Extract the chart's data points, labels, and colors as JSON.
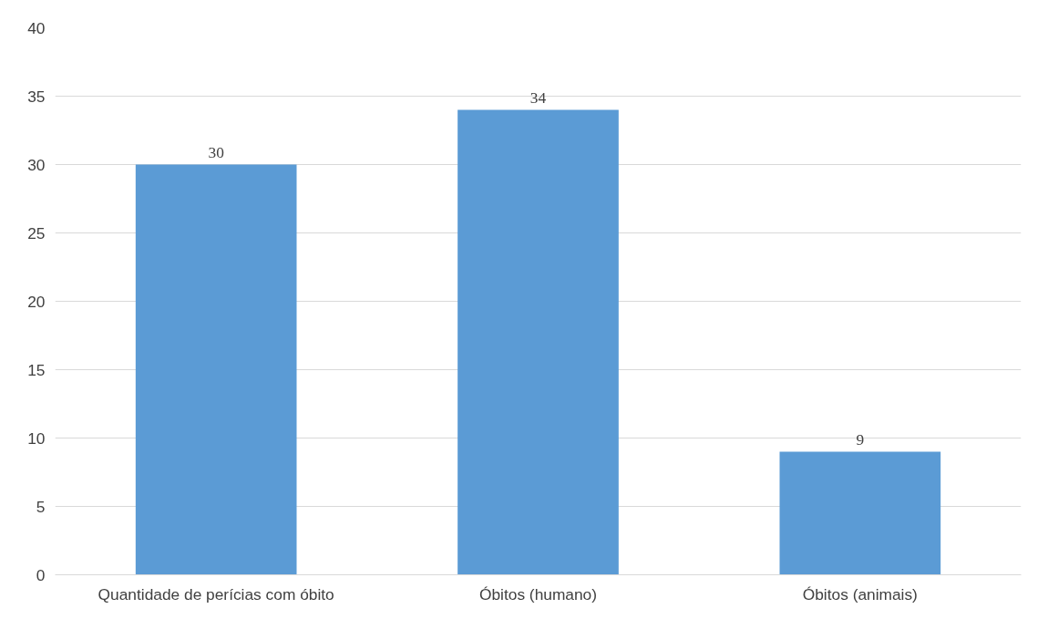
{
  "chart_data": {
    "type": "bar",
    "categories": [
      "Quantidade de perícias com óbito",
      "Óbitos (humano)",
      "Óbitos (animais)"
    ],
    "values": [
      30,
      34,
      9
    ],
    "color": "#5b9bd5",
    "ylim": [
      0,
      40
    ],
    "yticks": [
      0,
      5,
      10,
      15,
      20,
      25,
      30,
      35,
      40
    ],
    "grid": "y",
    "data_labels": true
  }
}
